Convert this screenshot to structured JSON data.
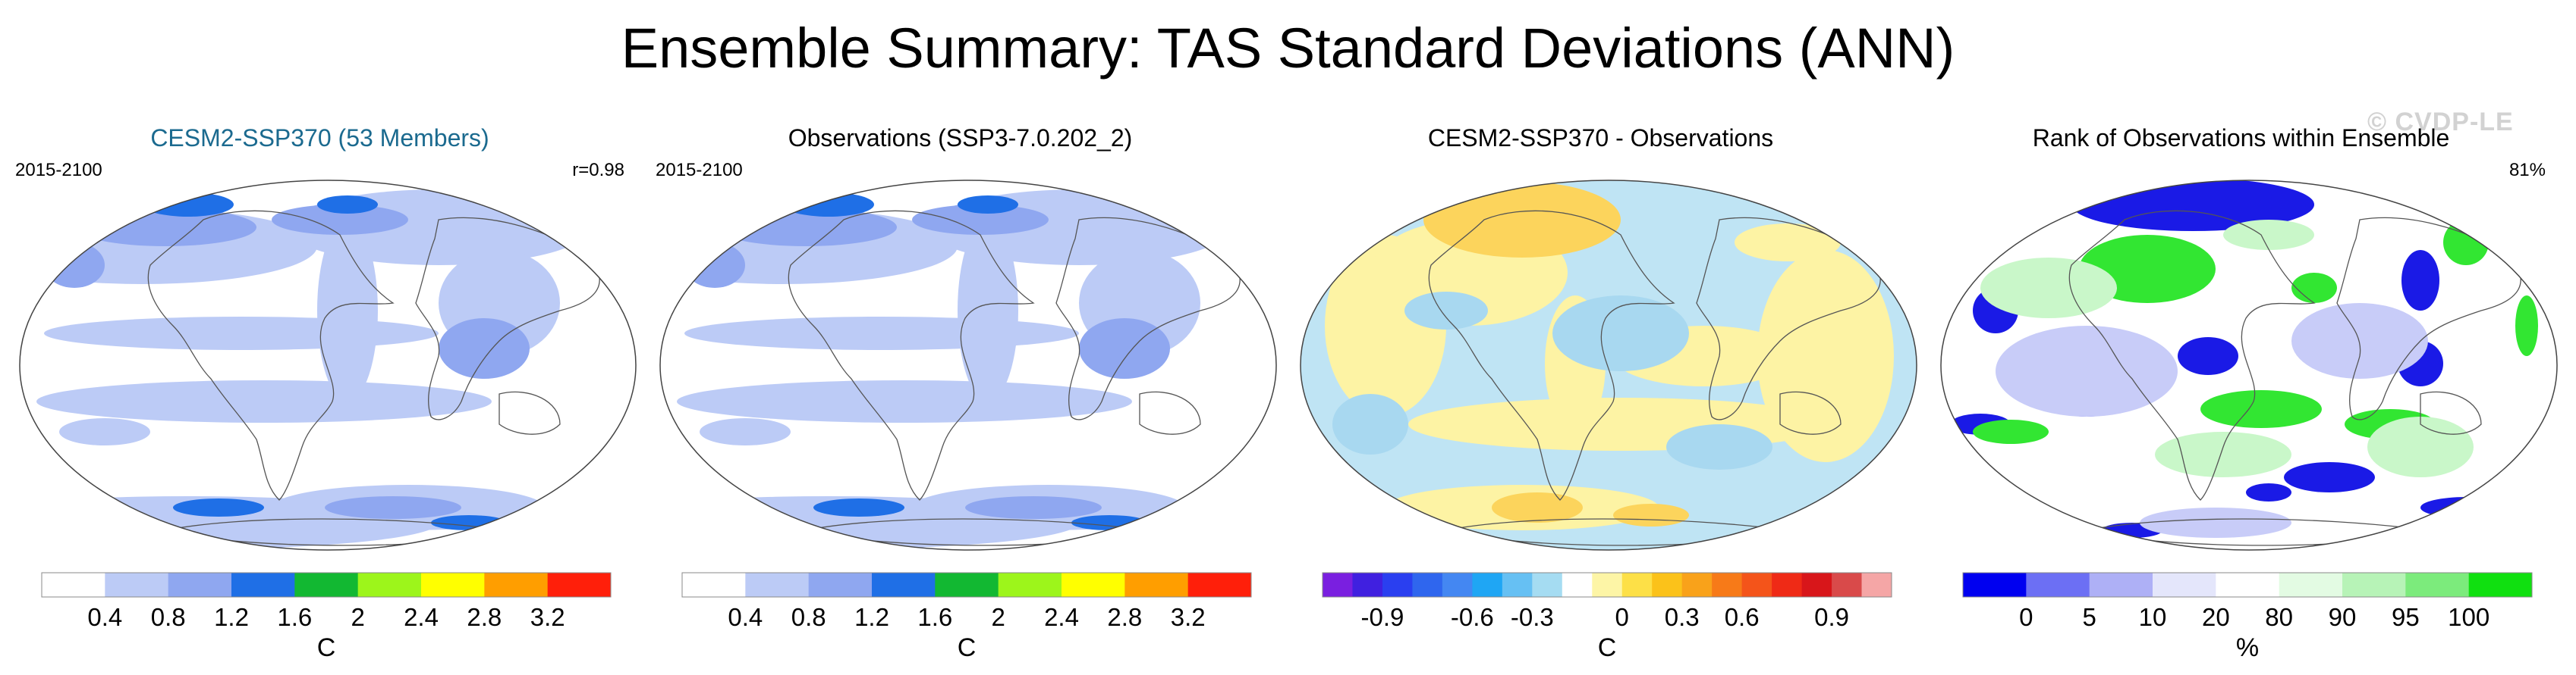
{
  "title": "Ensemble Summary: TAS Standard Deviations (ANN)",
  "watermark": "© CVDP-LE",
  "panels": [
    {
      "title": "CESM2-SSP370 (53 Members)",
      "title_color": "#1b6a8f",
      "left_label": "2015-2100",
      "right_label": "r=0.98",
      "map_background": "#ffffff",
      "map_fields": [
        "#bccbf6",
        "#8fa7f0",
        "#1f6fe6"
      ],
      "colorbar": {
        "colors": [
          "#ffffff",
          "#bccbf6",
          "#8fa7f0",
          "#1f6fe6",
          "#12b832",
          "#9df51b",
          "#ffff00",
          "#ff9e00",
          "#ff1f0a"
        ],
        "labels": [
          "0.4",
          "0.8",
          "1.2",
          "1.6",
          "2",
          "2.4",
          "2.8",
          "3.2"
        ],
        "unit": "C"
      }
    },
    {
      "title": "Observations (SSP3-7.0.202_2)",
      "title_color": "#000000",
      "left_label": "2015-2100",
      "right_label": "",
      "map_background": "#ffffff",
      "map_fields": [
        "#bccbf6",
        "#8fa7f0",
        "#1f6fe6"
      ],
      "colorbar": {
        "colors": [
          "#ffffff",
          "#bccbf6",
          "#8fa7f0",
          "#1f6fe6",
          "#12b832",
          "#9df51b",
          "#ffff00",
          "#ff9e00",
          "#ff1f0a"
        ],
        "labels": [
          "0.4",
          "0.8",
          "1.2",
          "1.6",
          "2",
          "2.4",
          "2.8",
          "3.2"
        ],
        "unit": "C"
      }
    },
    {
      "title": "CESM2-SSP370 - Observations",
      "title_color": "#000000",
      "left_label": "",
      "right_label": "",
      "map_background": "#bfe4f4",
      "map_fields": [
        "#fdf3a4",
        "#fcd45c",
        "#a8d8f0"
      ],
      "colorbar": {
        "colors": [
          "#7a1fe0",
          "#4020e0",
          "#2a3ff0",
          "#2f66ee",
          "#4487f2",
          "#1fa6f4",
          "#66c0f3",
          "#a5dcf2",
          "#ffffff",
          "#fdf5a6",
          "#fde047",
          "#fbc21a",
          "#f9a21a",
          "#f77a18",
          "#f4541a",
          "#ef2a16",
          "#d8161a",
          "#d94a4a",
          "#f5a6a6"
        ],
        "labels": [
          "-0.9",
          "-0.6",
          "-0.3",
          "0",
          "0.3",
          "0.6",
          "0.9"
        ],
        "unit": "C"
      }
    },
    {
      "title": "Rank of Observations within Ensemble",
      "title_color": "#000000",
      "left_label": "",
      "right_label": "81%",
      "map_background": "#ffffff",
      "map_fields": [
        "#1a1ae6",
        "#32e632",
        "#c8ccf8",
        "#c9f7c9"
      ],
      "colorbar": {
        "colors": [
          "#0000f0",
          "#6c6ff4",
          "#aeb0f6",
          "#e4e6fb",
          "#ffffff",
          "#e3fbe3",
          "#b7f3b7",
          "#7ceb7c",
          "#10e010"
        ],
        "labels": [
          "0",
          "5",
          "10",
          "20",
          "80",
          "90",
          "95",
          "100"
        ],
        "unit": "%"
      }
    }
  ]
}
